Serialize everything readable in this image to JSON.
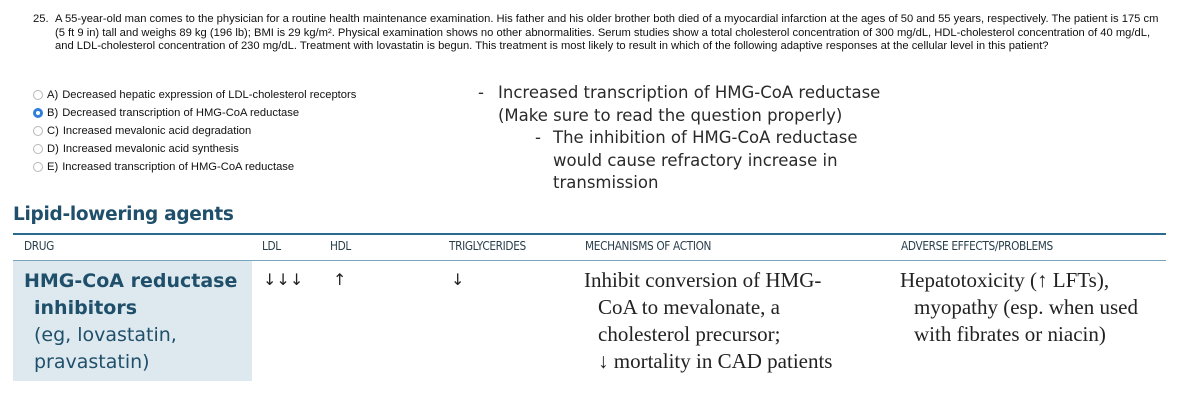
{
  "question": {
    "number": "25.",
    "text": "A 55-year-old man comes to the physician for a routine health maintenance examination. His father and his older brother both died of a myocardial infarction at the ages of 50 and 55 years, respectively. The patient is 175 cm (5 ft 9 in) tall and weighs 89 kg (196 lb); BMI is 29 kg/m². Physical examination shows no other abnormalities. Serum studies show a total cholesterol concentration of 300 mg/dL, HDL-cholesterol concentration of 40 mg/dL, and LDL-cholesterol concentration of 230 mg/dL. Treatment with lovastatin is begun. This treatment is most likely to result in which of the following adaptive responses at the cellular level in this patient?",
    "choices": [
      {
        "letter": "A)",
        "text": "Decreased hepatic expression of LDL-cholesterol receptors",
        "selected": false
      },
      {
        "letter": "B)",
        "text": "Decreased transcription of HMG-CoA reductase",
        "selected": true
      },
      {
        "letter": "C)",
        "text": "Increased mevalonic acid degradation",
        "selected": false
      },
      {
        "letter": "D)",
        "text": "Increased mevalonic acid synthesis",
        "selected": false
      },
      {
        "letter": "E)",
        "text": "Increased transcription of HMG-CoA reductase",
        "selected": false
      }
    ]
  },
  "notes": {
    "line1": "Increased transcription of HMG-CoA reductase",
    "line2": "(Make sure to read the question properly)",
    "line3": "The inhibition of HMG-CoA reductase",
    "line4": "would cause refractory increase in",
    "line5": "transmission",
    "dash": "-"
  },
  "table": {
    "title": "Lipid-lowering agents",
    "headers": {
      "drug": "DRUG",
      "ldl": "LDL",
      "hdl": "HDL",
      "tg": "TRIGLYCERIDES",
      "moa": "MECHANISMS OF ACTION",
      "ae": "ADVERSE EFFECTS/PROBLEMS"
    },
    "row": {
      "drug_line1": "HMG-CoA reductase",
      "drug_line2": "inhibitors",
      "drug_line3": "(eg, lovastatin,",
      "drug_line4": "pravastatin)",
      "ldl": "↓↓↓",
      "hdl": "↑",
      "tg": "↓",
      "moa_line1": "Inhibit conversion of HMG-",
      "moa_line2": "CoA to mevalonate, a",
      "moa_line3": "cholesterol precursor;",
      "moa_line4": "↓ mortality in CAD patients",
      "ae_line1": "Hepatotoxicity (↑ LFTs),",
      "ae_line2": "myopathy (esp. when used",
      "ae_line3": "with fibrates or niacin)"
    }
  },
  "colors": {
    "accent": "#1f4f6a",
    "drug_cell_bg": "#dde9ee",
    "radio_selected": "#2f7ed8"
  }
}
